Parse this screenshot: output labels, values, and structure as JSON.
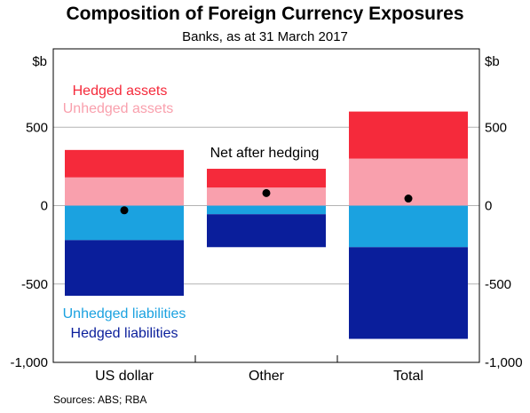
{
  "chart_data": {
    "type": "bar",
    "stacked": true,
    "title": "Composition of Foreign Currency Exposures",
    "subtitle": "Banks, as at 31 March 2017",
    "unit_label": "$b",
    "categories": [
      "US dollar",
      "Other",
      "Total"
    ],
    "ylim": [
      -1000,
      1000
    ],
    "yticks": [
      -1000,
      -500,
      0,
      500
    ],
    "ytick_labels": [
      "-1,000",
      "-500",
      "0",
      "500"
    ],
    "grid": "horizontal",
    "series": [
      {
        "name": "Unhedged assets",
        "color": "#f9a0ad",
        "values": [
          180,
          115,
          300
        ]
      },
      {
        "name": "Hedged assets",
        "color": "#f52a3b",
        "values": [
          175,
          120,
          300
        ]
      },
      {
        "name": "Unhedged liabilities",
        "color": "#1ba2e0",
        "values": [
          -220,
          -55,
          -265
        ]
      },
      {
        "name": "Hedged liabilities",
        "color": "#0a1e9b",
        "values": [
          -355,
          -210,
          -585
        ]
      }
    ],
    "net": {
      "name": "Net after hedging",
      "values": [
        -30,
        80,
        45
      ]
    },
    "legend": {
      "hedged_assets": "Hedged assets",
      "unhedged_assets": "Unhedged assets",
      "net": "Net after hedging",
      "unhedged_liabilities": "Unhedged liabilities",
      "hedged_liabilities": "Hedged liabilities"
    },
    "source": "Sources:   ABS; RBA"
  }
}
